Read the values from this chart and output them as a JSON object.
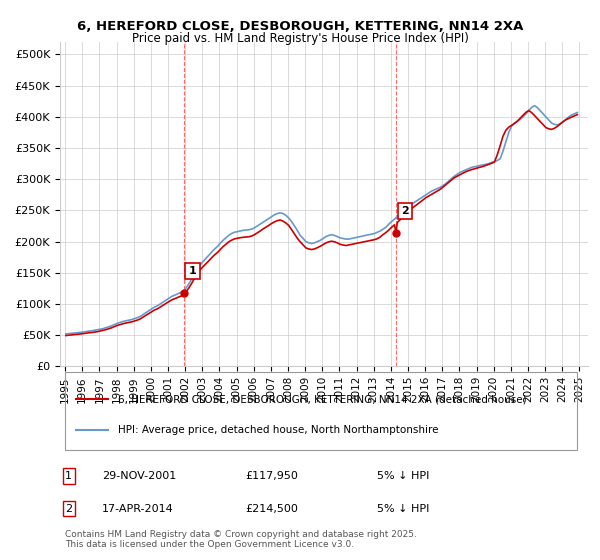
{
  "title_line1": "6, HEREFORD CLOSE, DESBOROUGH, KETTERING, NN14 2XA",
  "title_line2": "Price paid vs. HM Land Registry's House Price Index (HPI)",
  "ylabel": "",
  "ylim": [
    0,
    520000
  ],
  "yticks": [
    0,
    50000,
    100000,
    150000,
    200000,
    250000,
    300000,
    350000,
    400000,
    450000,
    500000
  ],
  "ytick_labels": [
    "£0",
    "£50K",
    "£100K",
    "£150K",
    "£200K",
    "£250K",
    "£300K",
    "£350K",
    "£400K",
    "£450K",
    "£500K"
  ],
  "background_color": "#ffffff",
  "plot_bg_color": "#ffffff",
  "grid_color": "#cccccc",
  "sale1_date": 2001.91,
  "sale1_price": 117950,
  "sale1_label": "1",
  "sale2_date": 2014.3,
  "sale2_price": 214500,
  "sale2_label": "2",
  "vline1_x": 2001.91,
  "vline2_x": 2014.3,
  "vline_color": "#ff4444",
  "sale_marker_color": "#cc0000",
  "hpi_line_color": "#6699cc",
  "price_line_color": "#cc0000",
  "legend_line1": "6, HEREFORD CLOSE, DESBOROUGH, KETTERING, NN14 2XA (detached house)",
  "legend_line2": "HPI: Average price, detached house, North Northamptonshire",
  "table_row1": [
    "1",
    "29-NOV-2001",
    "£117,950",
    "5% ↓ HPI"
  ],
  "table_row2": [
    "2",
    "17-APR-2014",
    "£214,500",
    "5% ↓ HPI"
  ],
  "footer": "Contains HM Land Registry data © Crown copyright and database right 2025.\nThis data is licensed under the Open Government Licence v3.0.",
  "hpi_data": {
    "dates": [
      1995.04,
      1995.21,
      1995.38,
      1995.54,
      1995.71,
      1995.88,
      1996.04,
      1996.21,
      1996.38,
      1996.54,
      1996.71,
      1996.88,
      1997.04,
      1997.21,
      1997.38,
      1997.54,
      1997.71,
      1997.88,
      1998.04,
      1998.21,
      1998.38,
      1998.54,
      1998.71,
      1998.88,
      1999.04,
      1999.21,
      1999.38,
      1999.54,
      1999.71,
      1999.88,
      2000.04,
      2000.21,
      2000.38,
      2000.54,
      2000.71,
      2000.88,
      2001.04,
      2001.21,
      2001.38,
      2001.54,
      2001.71,
      2001.88,
      2002.04,
      2002.21,
      2002.38,
      2002.54,
      2002.71,
      2002.88,
      2003.04,
      2003.21,
      2003.38,
      2003.54,
      2003.71,
      2003.88,
      2004.04,
      2004.21,
      2004.38,
      2004.54,
      2004.71,
      2004.88,
      2005.04,
      2005.21,
      2005.38,
      2005.54,
      2005.71,
      2005.88,
      2006.04,
      2006.21,
      2006.38,
      2006.54,
      2006.71,
      2006.88,
      2007.04,
      2007.21,
      2007.38,
      2007.54,
      2007.71,
      2007.88,
      2008.04,
      2008.21,
      2008.38,
      2008.54,
      2008.71,
      2008.88,
      2009.04,
      2009.21,
      2009.38,
      2009.54,
      2009.71,
      2009.88,
      2010.04,
      2010.21,
      2010.38,
      2010.54,
      2010.71,
      2010.88,
      2011.04,
      2011.21,
      2011.38,
      2011.54,
      2011.71,
      2011.88,
      2012.04,
      2012.21,
      2012.38,
      2012.54,
      2012.71,
      2012.88,
      2013.04,
      2013.21,
      2013.38,
      2013.54,
      2013.71,
      2013.88,
      2014.04,
      2014.21,
      2014.38,
      2014.54,
      2014.71,
      2014.88,
      2015.04,
      2015.21,
      2015.38,
      2015.54,
      2015.71,
      2015.88,
      2016.04,
      2016.21,
      2016.38,
      2016.54,
      2016.71,
      2016.88,
      2017.04,
      2017.21,
      2017.38,
      2017.54,
      2017.71,
      2017.88,
      2018.04,
      2018.21,
      2018.38,
      2018.54,
      2018.71,
      2018.88,
      2019.04,
      2019.21,
      2019.38,
      2019.54,
      2019.71,
      2019.88,
      2020.04,
      2020.21,
      2020.38,
      2020.54,
      2020.71,
      2020.88,
      2021.04,
      2021.21,
      2021.38,
      2021.54,
      2021.71,
      2021.88,
      2022.04,
      2022.21,
      2022.38,
      2022.54,
      2022.71,
      2022.88,
      2023.04,
      2023.21,
      2023.38,
      2023.54,
      2023.71,
      2023.88,
      2024.04,
      2024.21,
      2024.38,
      2024.54,
      2024.71,
      2024.88
    ],
    "values": [
      52000,
      52500,
      53000,
      53500,
      54000,
      54500,
      55000,
      55800,
      56500,
      57000,
      57800,
      58500,
      59500,
      60500,
      62000,
      63500,
      65000,
      67000,
      69000,
      70500,
      72000,
      73000,
      74000,
      75000,
      76500,
      78000,
      80000,
      83000,
      86000,
      89000,
      92000,
      95000,
      97000,
      100000,
      103000,
      106000,
      109000,
      112000,
      114000,
      116000,
      118000,
      120000,
      125000,
      132000,
      140000,
      148000,
      156000,
      163000,
      168000,
      173000,
      178000,
      183000,
      188000,
      192000,
      197000,
      202000,
      206000,
      210000,
      213000,
      215000,
      216000,
      217000,
      218000,
      218500,
      219000,
      220000,
      222000,
      225000,
      228000,
      231000,
      234000,
      237000,
      240000,
      243000,
      245000,
      246000,
      245000,
      242000,
      238000,
      232000,
      225000,
      218000,
      210000,
      205000,
      200000,
      198000,
      197000,
      198000,
      200000,
      202000,
      205000,
      208000,
      210000,
      211000,
      210000,
      208000,
      206000,
      205000,
      204000,
      204000,
      205000,
      206000,
      207000,
      208000,
      209000,
      210000,
      211000,
      212000,
      213000,
      215000,
      217000,
      220000,
      223000,
      228000,
      232000,
      236000,
      240000,
      244000,
      248000,
      252000,
      256000,
      260000,
      263000,
      266000,
      269000,
      272000,
      275000,
      278000,
      281000,
      283000,
      285000,
      287000,
      290000,
      293000,
      297000,
      301000,
      305000,
      308000,
      311000,
      313000,
      315000,
      317000,
      319000,
      320000,
      321000,
      322000,
      323000,
      324000,
      325000,
      327000,
      328000,
      330000,
      333000,
      345000,
      360000,
      375000,
      385000,
      390000,
      393000,
      396000,
      400000,
      405000,
      410000,
      415000,
      418000,
      415000,
      410000,
      405000,
      400000,
      395000,
      390000,
      388000,
      387000,
      389000,
      392000,
      396000,
      400000,
      403000,
      405000,
      407000
    ]
  },
  "price_data": {
    "dates": [
      1995.04,
      1995.21,
      1995.38,
      1995.54,
      1995.71,
      1995.88,
      1996.04,
      1996.21,
      1996.38,
      1996.54,
      1996.71,
      1996.88,
      1997.04,
      1997.21,
      1997.38,
      1997.54,
      1997.71,
      1997.88,
      1998.04,
      1998.21,
      1998.38,
      1998.54,
      1998.71,
      1998.88,
      1999.04,
      1999.21,
      1999.38,
      1999.54,
      1999.71,
      1999.88,
      2000.04,
      2000.21,
      2000.38,
      2000.54,
      2000.71,
      2000.88,
      2001.04,
      2001.21,
      2001.38,
      2001.54,
      2001.71,
      2001.88,
      2001.92,
      2002.04,
      2002.21,
      2002.38,
      2002.54,
      2002.71,
      2002.88,
      2003.04,
      2003.21,
      2003.38,
      2003.54,
      2003.71,
      2003.88,
      2004.04,
      2004.21,
      2004.38,
      2004.54,
      2004.71,
      2004.88,
      2005.04,
      2005.21,
      2005.38,
      2005.54,
      2005.71,
      2005.88,
      2006.04,
      2006.21,
      2006.38,
      2006.54,
      2006.71,
      2006.88,
      2007.04,
      2007.21,
      2007.38,
      2007.54,
      2007.71,
      2007.88,
      2008.04,
      2008.21,
      2008.38,
      2008.54,
      2008.71,
      2008.88,
      2009.04,
      2009.21,
      2009.38,
      2009.54,
      2009.71,
      2009.88,
      2010.04,
      2010.21,
      2010.38,
      2010.54,
      2010.71,
      2010.88,
      2011.04,
      2011.21,
      2011.38,
      2011.54,
      2011.71,
      2011.88,
      2012.04,
      2012.21,
      2012.38,
      2012.54,
      2012.71,
      2012.88,
      2013.04,
      2013.21,
      2013.38,
      2013.54,
      2013.71,
      2013.88,
      2014.04,
      2014.21,
      2014.3,
      2014.38,
      2014.54,
      2014.71,
      2014.88,
      2015.04,
      2015.21,
      2015.38,
      2015.54,
      2015.71,
      2015.88,
      2016.04,
      2016.21,
      2016.38,
      2016.54,
      2016.71,
      2016.88,
      2017.04,
      2017.21,
      2017.38,
      2017.54,
      2017.71,
      2017.88,
      2018.04,
      2018.21,
      2018.38,
      2018.54,
      2018.71,
      2018.88,
      2019.04,
      2019.21,
      2019.38,
      2019.54,
      2019.71,
      2019.88,
      2020.04,
      2020.21,
      2020.38,
      2020.54,
      2020.71,
      2020.88,
      2021.04,
      2021.21,
      2021.38,
      2021.54,
      2021.71,
      2021.88,
      2022.04,
      2022.21,
      2022.38,
      2022.54,
      2022.71,
      2022.88,
      2023.04,
      2023.21,
      2023.38,
      2023.54,
      2023.71,
      2023.88,
      2024.04,
      2024.21,
      2024.38,
      2024.54,
      2024.71,
      2024.88
    ],
    "values": [
      49400,
      49900,
      50400,
      50900,
      51400,
      51900,
      52400,
      53100,
      53800,
      54200,
      54900,
      55600,
      56600,
      57500,
      58900,
      60300,
      61800,
      63700,
      65600,
      67000,
      68400,
      69400,
      70400,
      71300,
      72700,
      74100,
      76000,
      78900,
      81700,
      84600,
      87400,
      90300,
      92200,
      95000,
      97900,
      100800,
      103600,
      106400,
      108400,
      110200,
      112100,
      114100,
      117950,
      118800,
      125400,
      133000,
      140700,
      148200,
      154900,
      159700,
      164400,
      169100,
      173900,
      178600,
      182400,
      187100,
      191900,
      195700,
      199600,
      202300,
      204400,
      205300,
      206200,
      206900,
      207300,
      207800,
      208900,
      211000,
      213900,
      217000,
      220200,
      223100,
      226000,
      229000,
      231600,
      233600,
      234700,
      232700,
      229800,
      225900,
      219200,
      212100,
      205500,
      199700,
      194600,
      190000,
      188200,
      187300,
      188200,
      190200,
      192500,
      195100,
      197800,
      199700,
      200600,
      199700,
      197900,
      195700,
      194600,
      193700,
      194600,
      195500,
      196500,
      197400,
      198300,
      199300,
      200300,
      201200,
      202100,
      203100,
      204700,
      207400,
      211100,
      214500,
      218500,
      223000,
      226900,
      214500,
      230800,
      235100,
      239600,
      244200,
      248700,
      252900,
      256500,
      260000,
      263600,
      267200,
      270300,
      273100,
      275800,
      278400,
      281100,
      283800,
      287300,
      291200,
      295200,
      298900,
      302500,
      305000,
      307400,
      309800,
      312100,
      313800,
      315400,
      316700,
      317900,
      319200,
      320600,
      322100,
      323800,
      325600,
      327500,
      339400,
      354200,
      368900,
      378600,
      383500,
      386400,
      389400,
      393100,
      397800,
      402500,
      407200,
      410100,
      406900,
      402200,
      397400,
      392600,
      387700,
      382800,
      380800,
      379900,
      381700,
      384600,
      388400,
      392200,
      395300,
      397600,
      399600,
      401600,
      403600
    ]
  },
  "xlim": [
    1994.7,
    2025.5
  ],
  "xticks": [
    1995,
    1996,
    1997,
    1998,
    1999,
    2000,
    2001,
    2002,
    2003,
    2004,
    2005,
    2006,
    2007,
    2008,
    2009,
    2010,
    2011,
    2012,
    2013,
    2014,
    2015,
    2016,
    2017,
    2018,
    2019,
    2020,
    2021,
    2022,
    2023,
    2024,
    2025
  ]
}
